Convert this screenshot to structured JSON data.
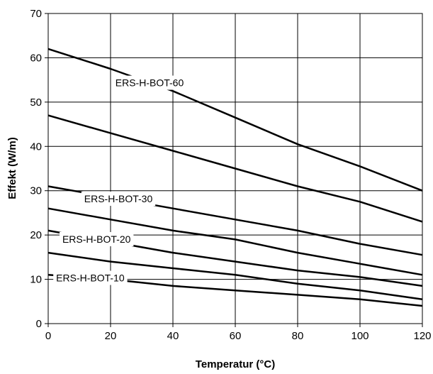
{
  "chart_data": {
    "type": "line",
    "title": "",
    "xlabel": "Temperatur (°C)",
    "ylabel": "Effekt (W/m)",
    "xlim": [
      0,
      120
    ],
    "ylim": [
      0,
      70
    ],
    "xticks": [
      "0",
      "20",
      "40",
      "60",
      "80",
      "100",
      "120"
    ],
    "yticks": [
      "0",
      "10",
      "20",
      "30",
      "40",
      "50",
      "60",
      "70"
    ],
    "grid": true,
    "legend": "none",
    "line_color": "#000000",
    "series": [
      {
        "name": "ERS-H-BOT-60",
        "x": [
          0,
          20,
          40,
          60,
          80,
          100,
          120
        ],
        "y": [
          62,
          57.5,
          52.5,
          46.5,
          40.5,
          35.5,
          30
        ]
      },
      {
        "x": [
          0,
          20,
          40,
          60,
          80,
          100,
          120
        ],
        "y": [
          47,
          43,
          39,
          35,
          31,
          27.5,
          23
        ]
      },
      {
        "name": "ERS-H-BOT-30",
        "x": [
          0,
          20,
          40,
          60,
          80,
          100,
          120
        ],
        "y": [
          31,
          28.5,
          26,
          23.5,
          21,
          18,
          15.5
        ]
      },
      {
        "x": [
          0,
          20,
          40,
          60,
          80,
          100,
          120
        ],
        "y": [
          26,
          23.5,
          21,
          19,
          16,
          13.5,
          11
        ]
      },
      {
        "name": "ERS-H-BOT-20",
        "x": [
          0,
          20,
          40,
          60,
          80,
          100,
          120
        ],
        "y": [
          21,
          18.5,
          16,
          14,
          12,
          10.5,
          8.5
        ]
      },
      {
        "x": [
          0,
          20,
          40,
          60,
          80,
          100,
          120
        ],
        "y": [
          16,
          14,
          12.5,
          11,
          9,
          7.5,
          5.5
        ]
      },
      {
        "name": "ERS-H-BOT-10",
        "x": [
          0,
          20,
          40,
          60,
          80,
          100,
          120
        ],
        "y": [
          11,
          10,
          8.5,
          7.5,
          6.5,
          5.5,
          4
        ]
      }
    ]
  }
}
